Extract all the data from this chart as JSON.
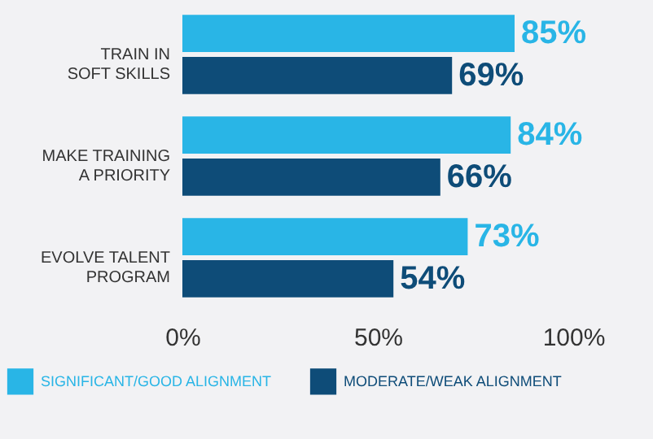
{
  "chart_data": {
    "type": "bar",
    "orientation": "horizontal",
    "categories": [
      "TRAIN IN SOFT SKILLS",
      "MAKE TRAINING A PRIORITY",
      "EVOLVE TALENT PROGRAM"
    ],
    "series": [
      {
        "name": "SIGNIFICANT/GOOD ALIGNMENT",
        "color": "#29b5e6",
        "values": [
          85,
          84,
          73
        ],
        "value_labels": [
          "85%",
          "84%",
          "73%"
        ]
      },
      {
        "name": "MODERATE/WEAK ALIGNMENT",
        "color": "#0e4c78",
        "values": [
          69,
          66,
          54
        ],
        "value_labels": [
          "69%",
          "66%",
          "54%"
        ]
      }
    ],
    "xlim": [
      0,
      100
    ],
    "xticks": [
      {
        "value": 0,
        "label": "0%"
      },
      {
        "value": 50,
        "label": "50%"
      },
      {
        "value": 100,
        "label": "100%"
      }
    ],
    "grid": false,
    "legend": "bottom"
  }
}
